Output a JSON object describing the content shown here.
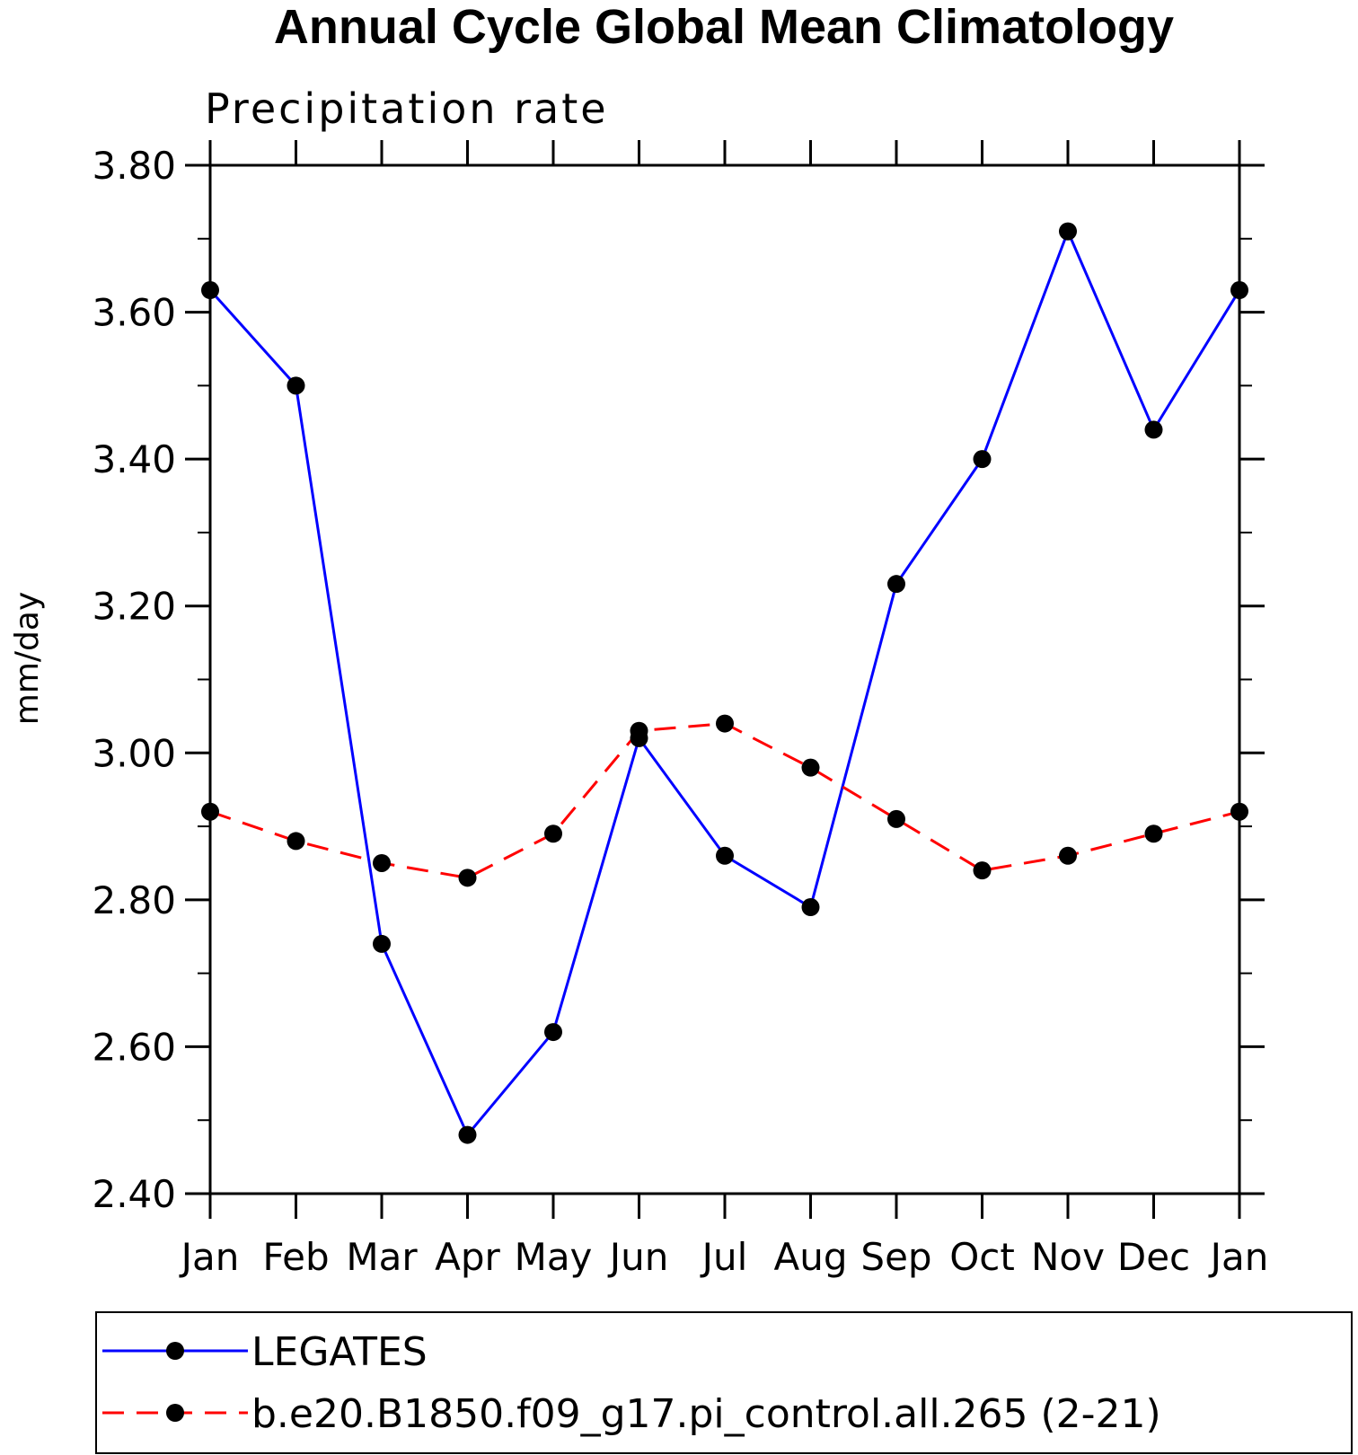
{
  "chart_data": {
    "type": "line",
    "title": "Annual Cycle Global Mean Climatology",
    "subtitle": "Precipitation rate",
    "xlabel": "",
    "ylabel": "mm/day",
    "categories": [
      "Jan",
      "Feb",
      "Mar",
      "Apr",
      "May",
      "Jun",
      "Jul",
      "Aug",
      "Sep",
      "Oct",
      "Nov",
      "Dec",
      "Jan"
    ],
    "ylim": [
      2.4,
      3.8
    ],
    "yticks": [
      "2.40",
      "2.60",
      "2.80",
      "3.00",
      "3.20",
      "3.40",
      "3.60",
      "3.80"
    ],
    "grid": false,
    "legend_position": "bottom",
    "series": [
      {
        "name": "LEGATES",
        "color": "#0000ff",
        "dash": "solid",
        "marker": "circle",
        "values": [
          3.63,
          3.5,
          2.74,
          2.48,
          2.62,
          3.02,
          2.86,
          2.79,
          3.23,
          3.4,
          3.71,
          3.44,
          3.63
        ]
      },
      {
        "name": "b.e20.B1850.f09_g17.pi_control.all.265 (2-21)",
        "color": "#ff0000",
        "dash": "dashed",
        "marker": "circle",
        "values": [
          2.92,
          2.88,
          2.85,
          2.83,
          2.89,
          3.03,
          3.04,
          2.98,
          2.91,
          2.84,
          2.86,
          2.89,
          2.92
        ]
      }
    ]
  }
}
